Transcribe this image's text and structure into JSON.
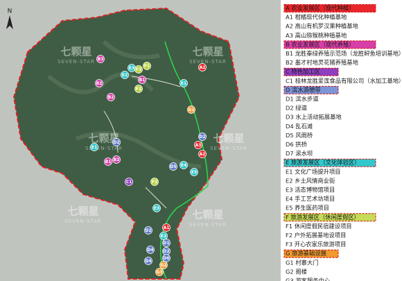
{
  "map": {
    "north": "N",
    "watermark_cn": "七颗星",
    "watermark_en": "SEVEN-STAR",
    "markers": [
      "B3",
      "E2",
      "E3",
      "F3",
      "F1",
      "B1",
      "F2",
      "B2",
      "A2",
      "E1",
      "B2",
      "G1",
      "A3",
      "D2",
      "A2",
      "E4",
      "E5",
      "D2",
      "E1",
      "B1",
      "B2",
      "C1",
      "F2",
      "D5",
      "E3",
      "A1",
      "D2",
      "E2",
      "D1",
      "D4",
      "D2",
      "D6",
      "D4",
      "G2",
      "G3"
    ]
  },
  "legend": {
    "groups": [
      {
        "header": "A 农业发展区（现代种植）",
        "items": [
          "A1 柑橘现代化种植基地",
          "A2 高山有机罗汉果种植基地",
          "A3 高山猕猴桃种植基地"
        ]
      },
      {
        "header": "B 农业发展区（现代养殖）",
        "items": [
          "B1 龙胜秦绿养殖示范场（龙胜鲟鱼培训基地）",
          "B2 墨才村地灵花猪养殖基地"
        ]
      },
      {
        "header": "C 特色加工区",
        "items": [
          "C1 桂林龙胜爱莲食品有限公司（水加工基地）"
        ]
      },
      {
        "header": "D 滨水游憩带",
        "items": [
          "D1 滨水步道",
          "D2 绿道",
          "D3 水上活动拓展基地",
          "D4 乱石滩",
          "D5 风雨桥",
          "D6 拱桥",
          "D7 滚水坝"
        ]
      },
      {
        "header": "E 旅游发展区（文化体验区）",
        "items": [
          "E1 文化广场提升项目",
          "E2 乡土风情商业街",
          "E3 活态博物馆项目",
          "E4 手工艺术坊项目",
          "E5 养生医药项目"
        ]
      },
      {
        "header": "F 旅游发展区（休闲度假区）",
        "items": [
          "F1 休闲度假民宿建设项目",
          "F2 户外拓展基地设项目",
          "F3 开心农家乐旅游项目"
        ]
      },
      {
        "header": "G 旅游基础设施",
        "items": [
          "G1 村寨大门",
          "G2 阁楼",
          "G3 游客服务中心"
        ]
      }
    ]
  }
}
